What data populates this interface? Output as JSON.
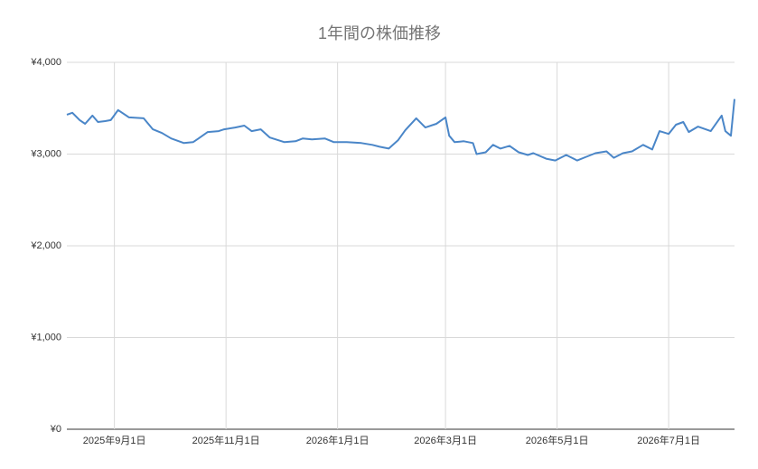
{
  "chart_data": {
    "type": "line",
    "title": "1年間の株価推移",
    "x": [
      "2025-08-06",
      "2025-08-09",
      "2025-08-13",
      "2025-08-16",
      "2025-08-20",
      "2025-08-23",
      "2025-08-27",
      "2025-08-30",
      "2025-09-03",
      "2025-09-09",
      "2025-09-17",
      "2025-09-22",
      "2025-09-27",
      "2025-10-02",
      "2025-10-09",
      "2025-10-14",
      "2025-10-17",
      "2025-10-22",
      "2025-10-28",
      "2025-10-31",
      "2025-11-06",
      "2025-11-11",
      "2025-11-15",
      "2025-11-20",
      "2025-11-25",
      "2025-12-03",
      "2025-12-09",
      "2025-12-13",
      "2025-12-18",
      "2025-12-25",
      "2025-12-30",
      "2026-01-06",
      "2026-01-14",
      "2026-01-20",
      "2026-01-24",
      "2026-01-29",
      "2026-02-03",
      "2026-02-07",
      "2026-02-13",
      "2026-02-18",
      "2026-02-24",
      "2026-03-01",
      "2026-03-03",
      "2026-03-06",
      "2026-03-11",
      "2026-03-16",
      "2026-03-18",
      "2026-03-23",
      "2026-03-27",
      "2026-03-31",
      "2026-04-05",
      "2026-04-10",
      "2026-04-15",
      "2026-04-18",
      "2026-04-25",
      "2026-04-30",
      "2026-05-06",
      "2026-05-12",
      "2026-05-17",
      "2026-05-22",
      "2026-05-28",
      "2026-06-01",
      "2026-06-06",
      "2026-06-11",
      "2026-06-17",
      "2026-06-22",
      "2026-06-26",
      "2026-07-01",
      "2026-07-05",
      "2026-07-09",
      "2026-07-12",
      "2026-07-17",
      "2026-07-24",
      "2026-07-30",
      "2026-08-01",
      "2026-08-04",
      "2026-08-06"
    ],
    "series": [
      {
        "color": "#4a86c8",
        "values": [
          3430,
          3450,
          3370,
          3330,
          3420,
          3350,
          3360,
          3370,
          3480,
          3400,
          3390,
          3270,
          3230,
          3170,
          3120,
          3130,
          3170,
          3240,
          3250,
          3270,
          3290,
          3310,
          3250,
          3270,
          3180,
          3130,
          3140,
          3170,
          3160,
          3170,
          3130,
          3130,
          3120,
          3100,
          3080,
          3060,
          3150,
          3260,
          3390,
          3290,
          3330,
          3400,
          3200,
          3130,
          3140,
          3120,
          3000,
          3020,
          3100,
          3060,
          3090,
          3020,
          2990,
          3010,
          2950,
          2930,
          2990,
          2930,
          2970,
          3010,
          3030,
          2960,
          3010,
          3030,
          3100,
          3050,
          3250,
          3220,
          3320,
          3350,
          3240,
          3300,
          3250,
          3420,
          3250,
          3200,
          3600
        ]
      }
    ],
    "xlim": [
      "2025-08-06",
      "2026-08-06"
    ],
    "xticks": [
      {
        "value": "2025-09-01",
        "label": "2025年9月1日"
      },
      {
        "value": "2025-11-01",
        "label": "2025年11月1日"
      },
      {
        "value": "2026-01-01",
        "label": "2026年1月1日"
      },
      {
        "value": "2026-03-01",
        "label": "2026年3月1日"
      },
      {
        "value": "2026-05-01",
        "label": "2026年5月1日"
      },
      {
        "value": "2026-07-01",
        "label": "2026年7月1日"
      }
    ],
    "ylim": [
      0,
      4000
    ],
    "yticks": [
      {
        "value": 0,
        "label": "¥0"
      },
      {
        "value": 1000,
        "label": "¥1,000"
      },
      {
        "value": 2000,
        "label": "¥2,000"
      },
      {
        "value": 3000,
        "label": "¥3,000"
      },
      {
        "value": 4000,
        "label": "¥4,000"
      }
    ],
    "grid": true
  }
}
